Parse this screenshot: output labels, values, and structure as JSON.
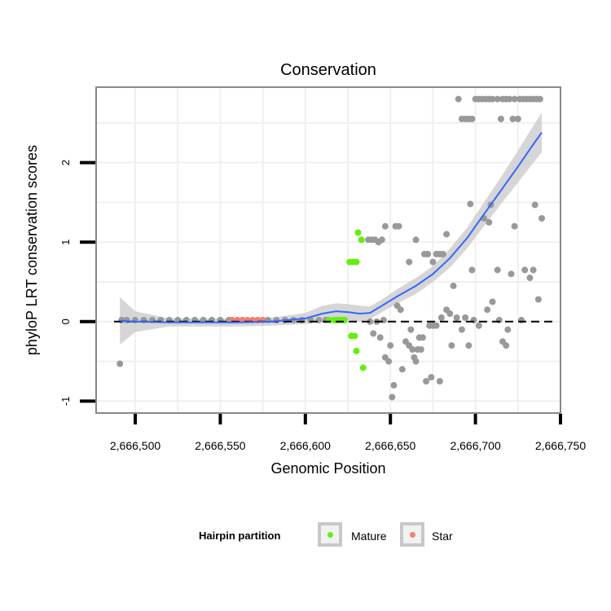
{
  "chart_data": {
    "type": "scatter",
    "title": "Conservation",
    "xlabel": "Genomic Position",
    "ylabel": "phyloP LRT conservation scores",
    "xlim": [
      2666477,
      2666750
    ],
    "ylim": [
      -1.15,
      2.95
    ],
    "x_ticks": [
      2666500,
      2666550,
      2666600,
      2666650,
      2666700,
      2666750
    ],
    "x_tick_labels": [
      "2,666,500",
      "2,666,550",
      "2,666,600",
      "2,666,650",
      "2,666,700",
      "2,666,750"
    ],
    "y_ticks": [
      -1,
      0,
      1,
      2
    ],
    "y_tick_labels": [
      "-1",
      "0",
      "1",
      "2"
    ],
    "reference_line": 0,
    "legend": {
      "title": "Hairpin partition",
      "placement": "bottom",
      "entries": [
        {
          "label": "Mature",
          "color": "#66ee11"
        },
        {
          "label": "Star",
          "color": "#f08070"
        }
      ]
    },
    "colors": {
      "other": "#999999",
      "mature": "#66ee11",
      "star": "#f08070",
      "smooth": "#3366ff",
      "ribbon": "#c8c8c8"
    },
    "series": [
      {
        "name": "Other",
        "points": [
          [
            2666491,
            -0.53
          ],
          [
            2666492,
            0.02
          ],
          [
            2666495,
            0.02
          ],
          [
            2666500,
            0.02
          ],
          [
            2666505,
            0.02
          ],
          [
            2666510,
            0.02
          ],
          [
            2666515,
            0.02
          ],
          [
            2666520,
            0.02
          ],
          [
            2666525,
            0.02
          ],
          [
            2666530,
            0.02
          ],
          [
            2666535,
            0.02
          ],
          [
            2666540,
            0.02
          ],
          [
            2666545,
            0.02
          ],
          [
            2666550,
            0.02
          ],
          [
            2666555,
            0.02
          ],
          [
            2666578,
            0.02
          ],
          [
            2666583,
            0.02
          ],
          [
            2666588,
            0.02
          ],
          [
            2666593,
            0.02
          ],
          [
            2666598,
            0.02
          ],
          [
            2666603,
            0.02
          ],
          [
            2666608,
            0.02
          ],
          [
            2666612,
            0.02
          ],
          [
            2666637,
            1.03
          ],
          [
            2666639,
            1.03
          ],
          [
            2666641,
            1.03
          ],
          [
            2666643,
            1.0
          ],
          [
            2666645,
            1.03
          ],
          [
            2666647,
            1.2
          ],
          [
            2666653,
            1.2
          ],
          [
            2666655,
            1.2
          ],
          [
            2666665,
            1.03
          ],
          [
            2666661,
            0.75
          ],
          [
            2666670,
            0.85
          ],
          [
            2666672,
            0.85
          ],
          [
            2666675,
            0.75
          ],
          [
            2666677,
            0.85
          ],
          [
            2666679,
            0.85
          ],
          [
            2666681,
            0.85
          ],
          [
            2666683,
            1.1
          ],
          [
            2666638,
            0.0
          ],
          [
            2666642,
            0.0
          ],
          [
            2666640,
            -0.15
          ],
          [
            2666644,
            -0.2
          ],
          [
            2666646,
            0.02
          ],
          [
            2666647,
            -0.45
          ],
          [
            2666649,
            -0.5
          ],
          [
            2666650,
            -0.3
          ],
          [
            2666652,
            -0.8
          ],
          [
            2666651,
            -0.95
          ],
          [
            2666654,
            0.2
          ],
          [
            2666656,
            0.15
          ],
          [
            2666657,
            -0.6
          ],
          [
            2666659,
            -0.25
          ],
          [
            2666661,
            -0.3
          ],
          [
            2666662,
            -0.1
          ],
          [
            2666663,
            -0.35
          ],
          [
            2666664,
            -0.45
          ],
          [
            2666665,
            -0.5
          ],
          [
            2666666,
            -0.35
          ],
          [
            2666667,
            -0.2
          ],
          [
            2666668,
            -0.35
          ],
          [
            2666669,
            -0.2
          ],
          [
            2666671,
            -0.75
          ],
          [
            2666673,
            -0.05
          ],
          [
            2666674,
            -0.7
          ],
          [
            2666675,
            -0.05
          ],
          [
            2666677,
            -0.05
          ],
          [
            2666679,
            -0.75
          ],
          [
            2666680,
            0.05
          ],
          [
            2666683,
            0.15
          ],
          [
            2666685,
            0.1
          ],
          [
            2666686,
            -0.3
          ],
          [
            2666687,
            0.45
          ],
          [
            2666689,
            0.05
          ],
          [
            2666692,
            -0.1
          ],
          [
            2666694,
            0.05
          ],
          [
            2666696,
            -0.3
          ],
          [
            2666697,
            1.48
          ],
          [
            2666698,
            0.65
          ],
          [
            2666699,
            0.02
          ],
          [
            2666702,
            -0.05
          ],
          [
            2666705,
            1.3
          ],
          [
            2666707,
            0.15
          ],
          [
            2666708,
            1.25
          ],
          [
            2666709,
            1.47
          ],
          [
            2666710,
            0.25
          ],
          [
            2666713,
            0.65
          ],
          [
            2666714,
            0.02
          ],
          [
            2666716,
            -0.25
          ],
          [
            2666718,
            -0.3
          ],
          [
            2666719,
            -0.1
          ],
          [
            2666721,
            0.6
          ],
          [
            2666723,
            1.2
          ],
          [
            2666727,
            0.02
          ],
          [
            2666729,
            0.65
          ],
          [
            2666732,
            0.55
          ],
          [
            2666734,
            0.65
          ],
          [
            2666735,
            1.47
          ],
          [
            2666737,
            0.28
          ],
          [
            2666739,
            1.3
          ],
          [
            2666690,
            2.8
          ],
          [
            2666692,
            2.55
          ],
          [
            2666694,
            2.55
          ],
          [
            2666696,
            2.55
          ],
          [
            2666698,
            2.55
          ],
          [
            2666700,
            2.8
          ],
          [
            2666702,
            2.8
          ],
          [
            2666704,
            2.8
          ],
          [
            2666706,
            2.8
          ],
          [
            2666708,
            2.8
          ],
          [
            2666710,
            2.8
          ],
          [
            2666713,
            2.8
          ],
          [
            2666715,
            2.55
          ],
          [
            2666716,
            2.8
          ],
          [
            2666718,
            2.8
          ],
          [
            2666720,
            2.8
          ],
          [
            2666722,
            2.55
          ],
          [
            2666723,
            2.8
          ],
          [
            2666725,
            2.55
          ],
          [
            2666726,
            2.8
          ],
          [
            2666728,
            2.8
          ],
          [
            2666730,
            2.8
          ],
          [
            2666732,
            2.8
          ],
          [
            2666734,
            2.8
          ],
          [
            2666736,
            2.8
          ],
          [
            2666738,
            2.8
          ]
        ]
      },
      {
        "name": "Mature",
        "points": [
          [
            2666614,
            0.02
          ],
          [
            2666617,
            0.02
          ],
          [
            2666619,
            0.02
          ],
          [
            2666621,
            0.02
          ],
          [
            2666623,
            0.02
          ],
          [
            2666626,
            0.75
          ],
          [
            2666628,
            0.75
          ],
          [
            2666630,
            0.75
          ],
          [
            2666631,
            1.12
          ],
          [
            2666633,
            1.03
          ],
          [
            2666627,
            -0.18
          ],
          [
            2666629,
            -0.18
          ],
          [
            2666630,
            -0.37
          ],
          [
            2666634,
            -0.58
          ]
        ]
      },
      {
        "name": "Star",
        "points": [
          [
            2666557,
            0.02
          ],
          [
            2666560,
            0.02
          ],
          [
            2666563,
            0.02
          ],
          [
            2666566,
            0.02
          ],
          [
            2666569,
            0.02
          ],
          [
            2666572,
            0.02
          ],
          [
            2666575,
            0.02
          ]
        ]
      }
    ],
    "smooth_line": [
      [
        2666491,
        0.01
      ],
      [
        2666500,
        0.0
      ],
      [
        2666520,
        -0.01
      ],
      [
        2666540,
        -0.01
      ],
      [
        2666560,
        -0.01
      ],
      [
        2666580,
        0.0
      ],
      [
        2666600,
        0.04
      ],
      [
        2666610,
        0.1
      ],
      [
        2666618,
        0.13
      ],
      [
        2666625,
        0.12
      ],
      [
        2666632,
        0.1
      ],
      [
        2666638,
        0.11
      ],
      [
        2666645,
        0.2
      ],
      [
        2666655,
        0.33
      ],
      [
        2666665,
        0.45
      ],
      [
        2666675,
        0.6
      ],
      [
        2666685,
        0.8
      ],
      [
        2666695,
        1.05
      ],
      [
        2666705,
        1.35
      ],
      [
        2666715,
        1.65
      ],
      [
        2666725,
        1.95
      ],
      [
        2666733,
        2.2
      ],
      [
        2666739,
        2.38
      ]
    ],
    "ribbon_half_width": [
      [
        2666491,
        0.3
      ],
      [
        2666500,
        0.13
      ],
      [
        2666520,
        0.05
      ],
      [
        2666540,
        0.05
      ],
      [
        2666560,
        0.05
      ],
      [
        2666580,
        0.05
      ],
      [
        2666600,
        0.07
      ],
      [
        2666610,
        0.1
      ],
      [
        2666618,
        0.1
      ],
      [
        2666625,
        0.1
      ],
      [
        2666632,
        0.1
      ],
      [
        2666638,
        0.08
      ],
      [
        2666645,
        0.08
      ],
      [
        2666655,
        0.09
      ],
      [
        2666665,
        0.1
      ],
      [
        2666675,
        0.1
      ],
      [
        2666685,
        0.12
      ],
      [
        2666695,
        0.13
      ],
      [
        2666705,
        0.15
      ],
      [
        2666715,
        0.17
      ],
      [
        2666725,
        0.2
      ],
      [
        2666733,
        0.23
      ],
      [
        2666739,
        0.25
      ]
    ]
  }
}
